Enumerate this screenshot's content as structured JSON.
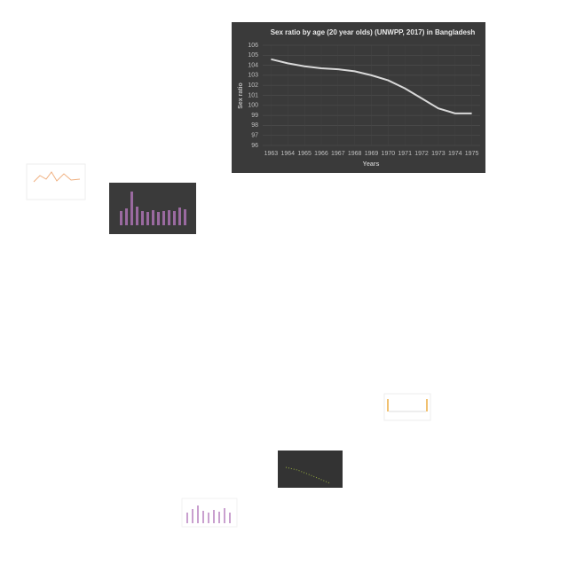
{
  "chart_data": {
    "type": "line",
    "title": "Sex ratio by age (20 year olds) (UNWPP, 2017) in Bangladesh",
    "x_label": "Years",
    "y_label": "Sex ratio",
    "categories": [
      "1963",
      "1964",
      "1965",
      "1966",
      "1967",
      "1968",
      "1969",
      "1970",
      "1971",
      "1972",
      "1973",
      "1974",
      "1975"
    ],
    "values": [
      104.6,
      104.2,
      103.9,
      103.7,
      103.6,
      103.4,
      103.0,
      102.5,
      101.7,
      100.7,
      99.7,
      99.2,
      99.2
    ],
    "color": "#d9d9d9",
    "ylim": [
      96,
      106
    ],
    "yticks": [
      96,
      97,
      98,
      99,
      100,
      101,
      102,
      103,
      104,
      105,
      106
    ],
    "grid": true
  }
}
